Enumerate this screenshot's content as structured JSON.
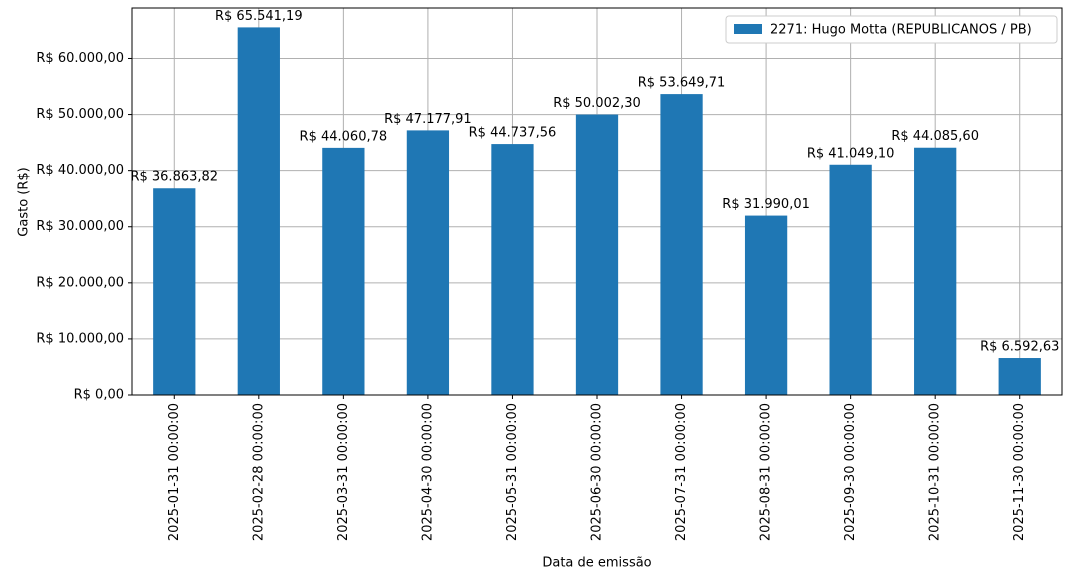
{
  "chart_data": {
    "type": "bar",
    "x_label": "Data de emissão",
    "y_label": "Gasto (R$)",
    "categories": [
      "2025-01-31 00:00:00",
      "2025-02-28 00:00:00",
      "2025-03-31 00:00:00",
      "2025-04-30 00:00:00",
      "2025-05-31 00:00:00",
      "2025-06-30 00:00:00",
      "2025-07-31 00:00:00",
      "2025-08-31 00:00:00",
      "2025-09-30 00:00:00",
      "2025-10-31 00:00:00",
      "2025-11-30 00:00:00"
    ],
    "series": [
      {
        "name": "2271: Hugo Motta (REPUBLICANOS / PB)",
        "color": "#1f77b4",
        "values": [
          36863.82,
          65541.19,
          44060.78,
          47177.91,
          44737.56,
          50002.3,
          53649.71,
          31990.01,
          41049.1,
          44085.6,
          6592.63
        ],
        "value_labels": [
          "R$ 36.863,82",
          "R$ 65.541,19",
          "R$ 44.060,78",
          "R$ 47.177,91",
          "R$ 44.737,56",
          "R$ 50.002,30",
          "R$ 53.649,71",
          "R$ 31.990,01",
          "R$ 41.049,10",
          "R$ 44.085,60",
          "R$ 6.592,63"
        ]
      }
    ],
    "ylim": [
      0,
      69000
    ],
    "yticks": [
      {
        "value": 0,
        "label": "R$ 0,00"
      },
      {
        "value": 10000,
        "label": "R$ 10.000,00"
      },
      {
        "value": 20000,
        "label": "R$ 20.000,00"
      },
      {
        "value": 30000,
        "label": "R$ 30.000,00"
      },
      {
        "value": 40000,
        "label": "R$ 40.000,00"
      },
      {
        "value": 50000,
        "label": "R$ 50.000,00"
      },
      {
        "value": 60000,
        "label": "R$ 60.000,00"
      }
    ],
    "grid": true,
    "legend": "upper right"
  }
}
